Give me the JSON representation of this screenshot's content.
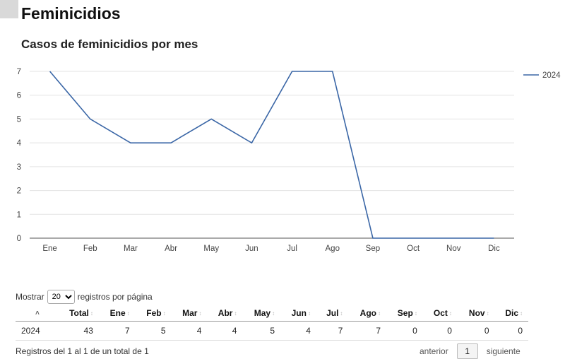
{
  "page": {
    "title": "Feminicidios"
  },
  "chart_data": {
    "type": "line",
    "title": "Casos de feminicidios por mes",
    "categories": [
      "Ene",
      "Feb",
      "Mar",
      "Abr",
      "May",
      "Jun",
      "Jul",
      "Ago",
      "Sep",
      "Oct",
      "Nov",
      "Dic"
    ],
    "series": [
      {
        "name": "2024",
        "values": [
          7,
          5,
          4,
          4,
          5,
          4,
          7,
          7,
          0,
          0,
          0,
          0
        ]
      }
    ],
    "yticks": [
      "0",
      "1",
      "2",
      "3",
      "4",
      "5",
      "6",
      "7"
    ],
    "ylim": [
      0,
      7
    ],
    "grid": true,
    "legend": "top-right",
    "colors": {
      "series": "#3a66a6"
    }
  },
  "table": {
    "length_label_before": "Mostrar",
    "length_value": "20",
    "length_label_after": "registros por página",
    "headers": [
      "",
      "Total",
      "Ene",
      "Feb",
      "Mar",
      "Abr",
      "May",
      "Jun",
      "Jul",
      "Ago",
      "Sep",
      "Oct",
      "Nov",
      "Dic"
    ],
    "rows": [
      [
        "2024",
        "43",
        "7",
        "5",
        "4",
        "4",
        "5",
        "4",
        "7",
        "7",
        "0",
        "0",
        "0",
        "0"
      ]
    ],
    "info": "Registros del 1 al 1 de un total de 1",
    "prev_label": "anterior",
    "current_page": "1",
    "next_label": "siguiente"
  }
}
